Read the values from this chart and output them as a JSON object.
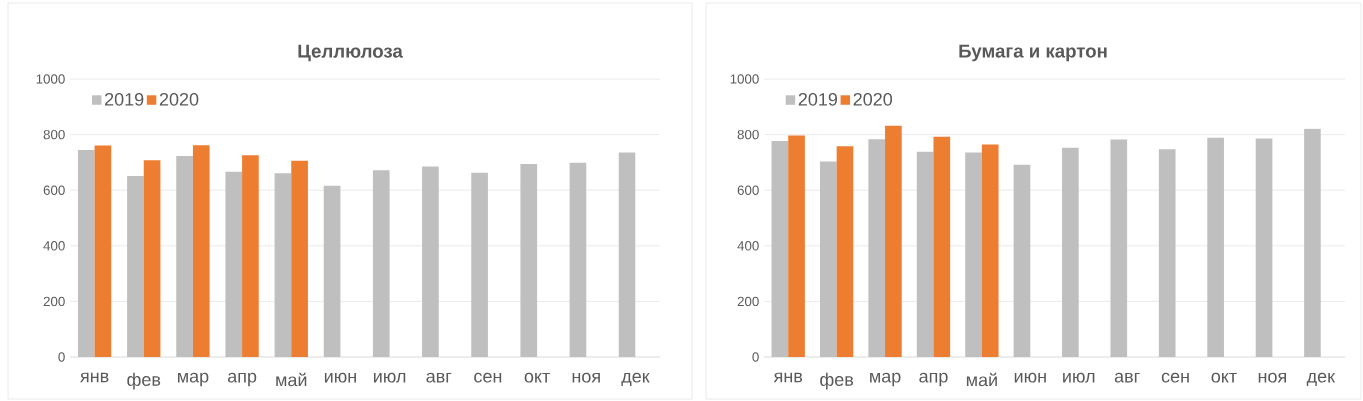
{
  "chart_data": [
    {
      "type": "bar",
      "title": "Целлюлоза",
      "categories": [
        "янв",
        "фев",
        "мар",
        "апр",
        "май",
        "июн",
        "июл",
        "авг",
        "сен",
        "окт",
        "ноя",
        "дек"
      ],
      "series": [
        {
          "name": "2019",
          "color": "#bfbfbf",
          "values": [
            745,
            651,
            723,
            666,
            661,
            616,
            672,
            685,
            663,
            694,
            699,
            736
          ]
        },
        {
          "name": "2020",
          "color": "#ed7d31",
          "values": [
            761,
            708,
            762,
            726,
            706,
            null,
            null,
            null,
            null,
            null,
            null,
            null
          ]
        }
      ],
      "ylim": [
        0,
        1000
      ],
      "yticks": [
        0,
        200,
        400,
        600,
        800,
        1000
      ],
      "grid": "y",
      "legend": "top left"
    },
    {
      "type": "bar",
      "title": "Бумага и картон",
      "categories": [
        "янв",
        "фев",
        "мар",
        "апр",
        "май",
        "июн",
        "июл",
        "авг",
        "сен",
        "окт",
        "ноя",
        "дек"
      ],
      "series": [
        {
          "name": "2019",
          "color": "#bfbfbf",
          "values": [
            777,
            703,
            783,
            738,
            736,
            692,
            753,
            782,
            747,
            789,
            786,
            821
          ]
        },
        {
          "name": "2020",
          "color": "#ed7d31",
          "values": [
            797,
            758,
            832,
            792,
            764,
            null,
            null,
            null,
            null,
            null,
            null,
            null
          ]
        }
      ],
      "ylim": [
        0,
        1000
      ],
      "yticks": [
        0,
        200,
        400,
        600,
        800,
        1000
      ],
      "grid": "y",
      "legend": "top left"
    }
  ]
}
